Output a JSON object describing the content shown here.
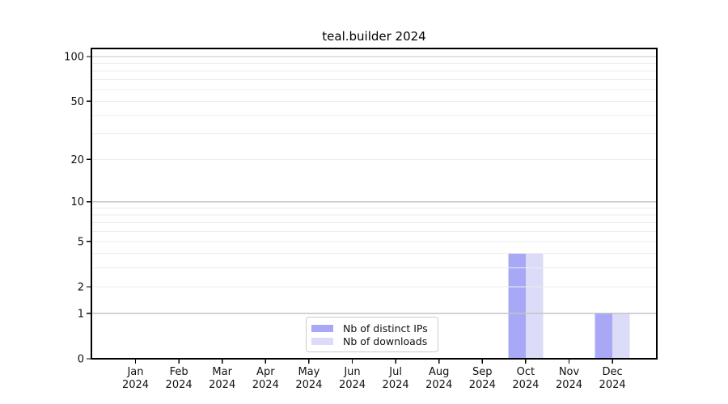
{
  "chart_data": {
    "type": "bar",
    "title": "teal.builder 2024",
    "categories": [
      "Jan 2024",
      "Feb 2024",
      "Mar 2024",
      "Apr 2024",
      "May 2024",
      "Jun 2024",
      "Jul 2024",
      "Aug 2024",
      "Sep 2024",
      "Oct 2024",
      "Nov 2024",
      "Dec 2024"
    ],
    "series": [
      {
        "name": "Nb of distinct IPs",
        "color": "#a8a8f7",
        "values": [
          0,
          0,
          0,
          0,
          0,
          0,
          0,
          0,
          0,
          4,
          0,
          1
        ]
      },
      {
        "name": "Nb of downloads",
        "color": "#dcdcf9",
        "values": [
          0,
          0,
          0,
          0,
          0,
          0,
          0,
          0,
          0,
          4,
          0,
          1
        ]
      }
    ],
    "y_axis": {
      "scale": "log1p",
      "tick_labels": [
        0,
        1,
        2,
        5,
        10,
        20,
        50,
        100
      ],
      "major_gridlines": [
        1,
        10,
        100
      ],
      "minor_gridlines": [
        2,
        3,
        4,
        5,
        6,
        7,
        8,
        9,
        20,
        30,
        40,
        50,
        60,
        70,
        80,
        90
      ],
      "max_value": 100
    },
    "legend": {
      "position": "lower center"
    },
    "colors": {
      "major_grid": "#c4c4c4",
      "minor_grid": "#ededed",
      "spine": "#000000",
      "tick_text": "#111111",
      "legend_border": "#cccccc"
    },
    "grid_above_bars": true
  }
}
